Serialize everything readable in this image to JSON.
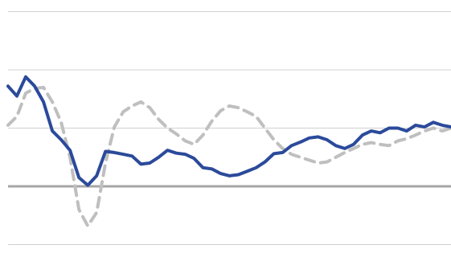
{
  "chart_data": {
    "type": "line",
    "title": "",
    "xlabel": "",
    "ylabel": "",
    "grid": true,
    "legend": "none",
    "ylim": [
      -1,
      3
    ],
    "gridlines_y": [
      -1,
      1,
      2,
      3
    ],
    "baseline_y": 0,
    "series": [
      {
        "style": "solid",
        "color": "#2b4a9b",
        "x": [
          0,
          2,
          4,
          6,
          8,
          10,
          12,
          14,
          16,
          18,
          20,
          22,
          24,
          26,
          28,
          30,
          32,
          34,
          36,
          38,
          40,
          42,
          44,
          46,
          48,
          50,
          52,
          54,
          56,
          58,
          60,
          62,
          64,
          66,
          68,
          70,
          72,
          74,
          76,
          78,
          80,
          82,
          84,
          86,
          88,
          90,
          92,
          94,
          96,
          98,
          100
        ],
        "values": [
          1.72,
          1.55,
          1.88,
          1.72,
          1.45,
          0.95,
          0.8,
          0.62,
          0.15,
          0.02,
          0.18,
          0.6,
          0.58,
          0.55,
          0.52,
          0.38,
          0.4,
          0.5,
          0.62,
          0.57,
          0.55,
          0.48,
          0.32,
          0.3,
          0.22,
          0.18,
          0.2,
          0.26,
          0.32,
          0.42,
          0.56,
          0.58,
          0.7,
          0.76,
          0.83,
          0.85,
          0.8,
          0.7,
          0.65,
          0.72,
          0.88,
          0.95,
          0.92,
          1.0,
          1.0,
          0.95,
          1.05,
          1.02,
          1.1,
          1.05,
          1.02
        ]
      },
      {
        "style": "dashed",
        "color": "#bfbfbf",
        "x": [
          0,
          2,
          4,
          6,
          8,
          10,
          12,
          14,
          16,
          18,
          20,
          22,
          24,
          26,
          28,
          30,
          32,
          34,
          36,
          38,
          40,
          42,
          44,
          46,
          48,
          50,
          52,
          54,
          56,
          58,
          60,
          62,
          64,
          66,
          68,
          70,
          72,
          74,
          76,
          78,
          80,
          82,
          84,
          86,
          88,
          90,
          92,
          94,
          96,
          98,
          100
        ],
        "values": [
          1.05,
          1.2,
          1.6,
          1.68,
          1.7,
          1.45,
          1.1,
          0.5,
          -0.4,
          -0.68,
          -0.45,
          0.4,
          1.02,
          1.28,
          1.38,
          1.45,
          1.35,
          1.15,
          1.0,
          0.9,
          0.78,
          0.72,
          0.88,
          1.12,
          1.3,
          1.38,
          1.35,
          1.28,
          1.2,
          1.0,
          0.8,
          0.65,
          0.55,
          0.5,
          0.45,
          0.4,
          0.42,
          0.5,
          0.58,
          0.65,
          0.72,
          0.75,
          0.72,
          0.7,
          0.78,
          0.82,
          0.88,
          0.95,
          1.0,
          0.95,
          1.0
        ]
      }
    ]
  }
}
